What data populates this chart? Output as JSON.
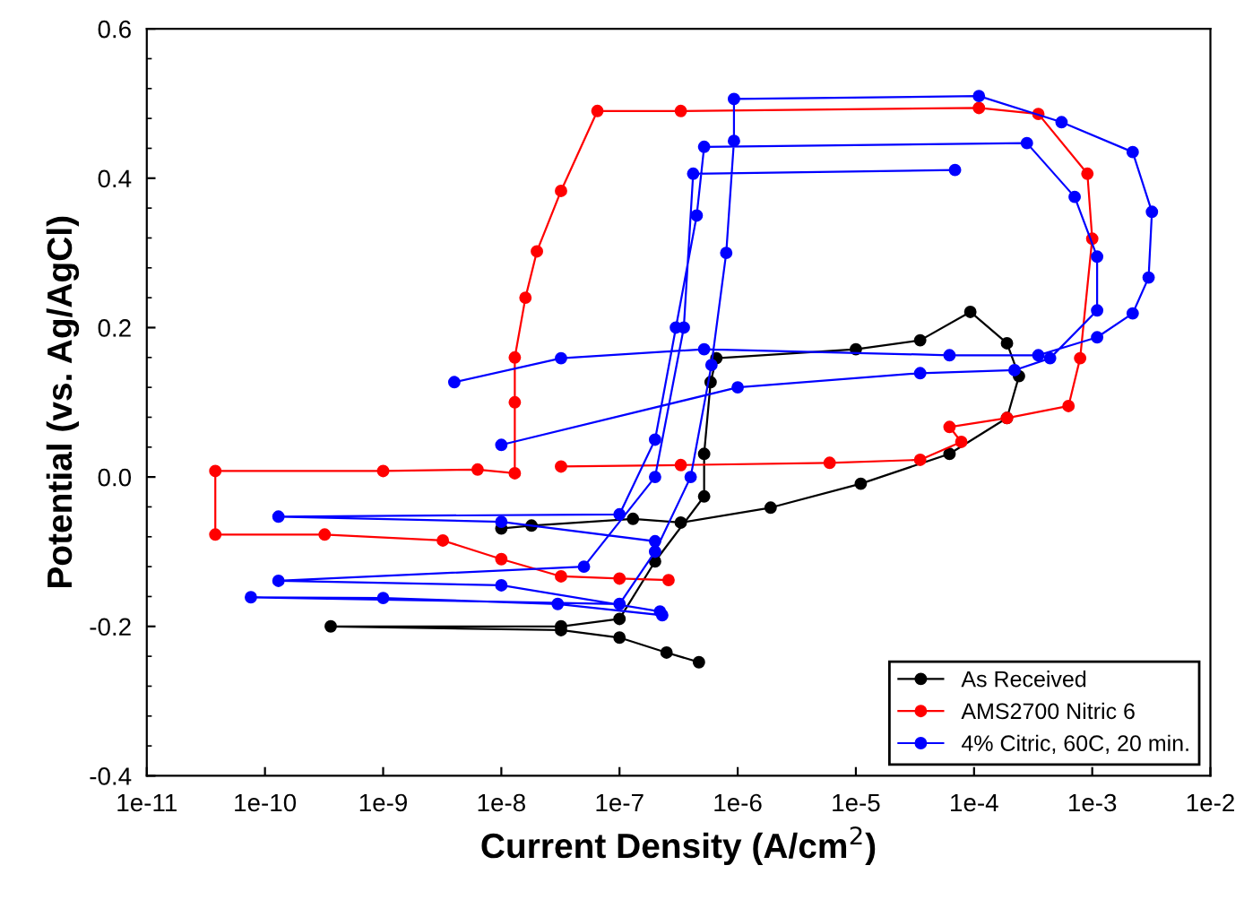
{
  "chart_data": {
    "type": "line",
    "xlabel": "Current Density (A/cm$^{2}$)",
    "ylabel": "Potential (vs. Ag/AgCl)",
    "log": "x",
    "marker": "circle",
    "line_style": "solid",
    "grid": false,
    "legend": "bottom right",
    "xlim": [
      1e-11,
      0.01
    ],
    "ylim": [
      -0.4,
      0.6
    ],
    "xticks": [
      {
        "value": 1e-11,
        "label": "1e-11"
      },
      {
        "value": 1e-10,
        "label": "1e-10"
      },
      {
        "value": 1e-09,
        "label": "1e-9"
      },
      {
        "value": 1e-08,
        "label": "1e-8"
      },
      {
        "value": 1e-07,
        "label": "1e-7"
      },
      {
        "value": 1e-06,
        "label": "1e-6"
      },
      {
        "value": 1e-05,
        "label": "1e-5"
      },
      {
        "value": 0.0001,
        "label": "1e-4"
      },
      {
        "value": 0.001,
        "label": "1e-3"
      },
      {
        "value": 0.01,
        "label": "1e-2"
      }
    ],
    "yticks": [
      -0.4,
      -0.2,
      {
        "value": 0.0,
        "label": "0.0"
      },
      0.2,
      0.4,
      0.6
    ],
    "series": [
      {
        "name": "As Received",
        "color": "#000000",
        "x": [
          4.7e-07,
          2.5e-07,
          1e-07,
          3.2e-08,
          3.6e-10,
          3.2e-08,
          1e-07,
          2e-07,
          5.2e-07,
          5.2e-07,
          5.9e-07,
          6.6e-07,
          1e-05,
          3.5e-05,
          9.3e-05,
          0.00019,
          0.00024,
          0.00019,
          6.2e-05,
          1.1e-05,
          1.9e-06,
          3.3e-07,
          1.3e-07,
          1.8e-08,
          1e-08
        ],
        "values": [
          -0.248,
          -0.235,
          -0.215,
          -0.205,
          -0.2,
          -0.2,
          -0.19,
          -0.113,
          -0.026,
          0.031,
          0.127,
          0.159,
          0.171,
          0.183,
          0.221,
          0.179,
          0.135,
          0.079,
          0.031,
          -0.009,
          -0.041,
          -0.061,
          -0.056,
          -0.065,
          -0.069
        ]
      },
      {
        "name": "AMS2700 Nitric 6",
        "color": "#ff0000",
        "x": [
          2.6e-07,
          1e-07,
          3.2e-08,
          1e-08,
          3.2e-09,
          3.2e-10,
          3.8e-11,
          3.8e-11,
          1e-09,
          6.3e-09,
          1.3e-08,
          1.3e-08,
          1.3e-08,
          1.6e-08,
          2e-08,
          3.2e-08,
          6.5e-08,
          3.3e-07,
          0.00011,
          0.00035,
          0.00091,
          0.001,
          0.00079,
          0.00063,
          0.00019,
          6.2e-05,
          7.8e-05,
          3.5e-05,
          6e-06,
          3.3e-07,
          3.2e-08
        ],
        "values": [
          -0.138,
          -0.136,
          -0.133,
          -0.11,
          -0.085,
          -0.077,
          -0.077,
          0.008,
          0.008,
          0.01,
          0.005,
          0.1,
          0.16,
          0.24,
          0.302,
          0.383,
          0.49,
          0.49,
          0.494,
          0.486,
          0.406,
          0.319,
          0.159,
          0.095,
          0.079,
          0.067,
          0.047,
          0.023,
          0.019,
          0.016,
          0.014
        ]
      },
      {
        "name": "4% Citric, 60C, 20 min.",
        "color": "#0000ff",
        "x": [
          2.3e-07,
          3e-08,
          1e-09,
          7.6e-11,
          1e-07,
          2e-07,
          4e-07,
          6e-07,
          8e-07,
          9.3e-07,
          9.3e-07,
          0.00011,
          0.00055,
          0.0022,
          0.0032,
          0.003,
          0.0022,
          0.0011,
          0.00035,
          6.2e-05,
          5.2e-07,
          3.2e-08,
          4e-09,
          null,
          2e-07,
          1e-08,
          1.3e-10,
          1e-07,
          2e-07,
          3e-07,
          4.5e-07,
          5.2e-07,
          0.00028,
          0.00071,
          0.0011,
          0.0011,
          0.00044,
          0.00022,
          3.5e-05,
          1e-06,
          1e-08,
          null,
          2.2e-07,
          1e-08,
          1.3e-10,
          5e-08,
          2e-07,
          3.5e-07,
          4.2e-07,
          6.9e-05
        ],
        "values": [
          -0.185,
          -0.17,
          -0.162,
          -0.161,
          -0.17,
          -0.1,
          0.0,
          0.15,
          0.3,
          0.45,
          0.506,
          0.51,
          0.475,
          0.435,
          0.355,
          0.267,
          0.219,
          0.187,
          0.163,
          0.163,
          0.171,
          0.159,
          0.127,
          null,
          -0.086,
          -0.06,
          -0.053,
          -0.05,
          0.05,
          0.2,
          0.35,
          0.442,
          0.447,
          0.375,
          0.295,
          0.223,
          0.159,
          0.143,
          0.139,
          0.12,
          0.043,
          null,
          -0.18,
          -0.145,
          -0.139,
          -0.12,
          0.0,
          0.2,
          0.406,
          0.411
        ]
      }
    ]
  }
}
